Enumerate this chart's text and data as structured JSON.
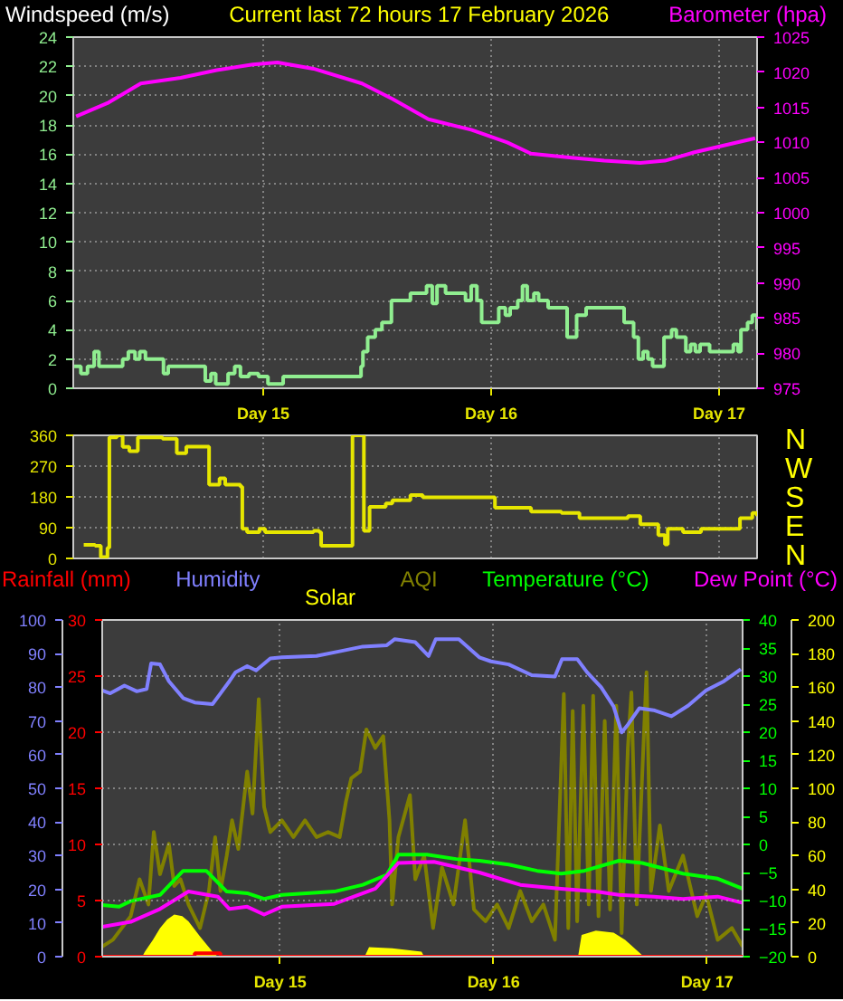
{
  "chart_data": [
    {
      "type": "line",
      "title": "Current last 72 hours 17 February 2026",
      "ylabel": "Windspeed (m/s)",
      "y2label": "Barometer (hpa)",
      "xlim": [
        "2026-02-14T04:00",
        "2026-02-17T04:00"
      ],
      "xticks": [
        {
          "value": "2026-02-15",
          "label": "Day 15"
        },
        {
          "value": "2026-02-16",
          "label": "Day 16"
        },
        {
          "value": "2026-02-17",
          "label": "Day 17"
        }
      ],
      "ylim": [
        0,
        24
      ],
      "yticks": [
        0,
        2,
        4,
        6,
        8,
        10,
        12,
        14,
        16,
        18,
        20,
        22,
        24
      ],
      "y2lim": [
        975,
        1025
      ],
      "y2ticks": [
        975,
        980,
        985,
        990,
        995,
        1000,
        1005,
        1010,
        1015,
        1020,
        1025
      ],
      "grid": true,
      "series": [
        {
          "type": "step",
          "color": "#90ee90",
          "x": [
            "2026-02-14T04:06",
            "2026-02-14T04:48",
            "2026-02-14T05:30",
            "2026-02-14T06:12",
            "2026-02-14T06:42",
            "2026-02-14T08:42",
            "2026-02-14T09:12",
            "2026-02-14T09:48",
            "2026-02-14T10:30",
            "2026-02-14T11:00",
            "2026-02-14T11:36",
            "2026-02-14T13:00",
            "2026-02-14T13:30",
            "2026-02-14T14:00",
            "2026-02-14T17:00",
            "2026-02-14T17:54",
            "2026-02-14T18:30",
            "2026-02-14T19:00",
            "2026-02-14T19:42",
            "2026-02-14T20:18",
            "2026-02-14T21:00",
            "2026-02-14T21:36",
            "2026-02-14T22:30",
            "2026-02-14T23:30",
            "2026-02-15T00:30",
            "2026-02-15T02:06",
            "2026-02-15T08:12",
            "2026-02-15T10:18",
            "2026-02-15T10:30",
            "2026-02-15T11:00",
            "2026-02-15T11:48",
            "2026-02-15T12:30",
            "2026-02-15T13:30",
            "2026-02-15T15:30",
            "2026-02-15T17:12",
            "2026-02-15T17:48",
            "2026-02-15T18:18",
            "2026-02-15T19:12",
            "2026-02-15T21:18",
            "2026-02-15T21:54",
            "2026-02-15T22:30",
            "2026-02-15T23:00",
            "2026-02-16T00:30",
            "2026-02-16T00:48",
            "2026-02-16T01:30",
            "2026-02-16T02:00",
            "2026-02-16T02:48",
            "2026-02-16T03:18",
            "2026-02-16T03:48",
            "2026-02-16T04:30",
            "2026-02-16T05:00",
            "2026-02-16T06:00",
            "2026-02-16T08:00",
            "2026-02-16T09:00",
            "2026-02-16T10:00",
            "2026-02-16T13:30",
            "2026-02-16T14:00",
            "2026-02-16T15:00",
            "2026-02-16T15:30",
            "2026-02-16T16:00",
            "2026-02-16T16:30",
            "2026-02-16T17:00",
            "2026-02-16T18:12",
            "2026-02-16T19:00",
            "2026-02-16T19:30",
            "2026-02-16T20:30",
            "2026-02-16T21:00",
            "2026-02-16T21:30",
            "2026-02-16T22:00",
            "2026-02-16T23:00",
            "2026-02-17T01:30",
            "2026-02-17T02:00",
            "2026-02-17T02:18",
            "2026-02-17T03:00",
            "2026-02-17T03:30",
            "2026-02-17T04:00"
          ],
          "values": [
            1.5,
            1.0,
            1.5,
            2.5,
            1.5,
            1.5,
            2.0,
            2.5,
            2.0,
            2.5,
            2.0,
            2.0,
            1.0,
            1.5,
            1.5,
            0.5,
            1.0,
            0.3,
            0.3,
            1.0,
            1.5,
            0.8,
            1.0,
            0.8,
            0.3,
            0.8,
            0.8,
            1.5,
            2.5,
            3.5,
            4.0,
            4.5,
            6.0,
            6.5,
            7.0,
            5.8,
            7.0,
            6.5,
            6.0,
            7.0,
            6.0,
            4.5,
            4.5,
            5.5,
            5.0,
            5.5,
            6.0,
            7.0,
            6.0,
            6.5,
            6.0,
            5.5,
            3.5,
            5.0,
            5.5,
            5.5,
            4.5,
            3.5,
            2.0,
            2.5,
            2.0,
            1.5,
            3.5,
            4.0,
            3.5,
            2.5,
            3.0,
            2.5,
            3.0,
            2.5,
            3.0,
            2.5,
            4.0,
            4.5,
            5.0,
            4.0
          ]
        },
        {
          "color": "#ff00ff",
          "axis": "y2",
          "x": [
            "2026-02-14T04:18",
            "2026-02-14T07:36",
            "2026-02-14T11:06",
            "2026-02-14T15:18",
            "2026-02-14T19:06",
            "2026-02-14T22:54",
            "2026-02-15T01:30",
            "2026-02-15T05:18",
            "2026-02-15T10:24",
            "2026-02-15T13:36",
            "2026-02-15T17:24",
            "2026-02-15T21:54",
            "2026-02-16T01:42",
            "2026-02-16T04:12",
            "2026-02-16T08:42",
            "2026-02-16T11:54",
            "2026-02-16T15:42",
            "2026-02-16T18:18",
            "2026-02-16T21:24",
            "2026-02-17T00:36",
            "2026-02-17T03:48"
          ],
          "values": [
            1013.7,
            1015.6,
            1018.4,
            1019.2,
            1020.3,
            1021.1,
            1021.4,
            1020.5,
            1018.4,
            1016.2,
            1013.3,
            1011.8,
            1010.0,
            1008.4,
            1007.8,
            1007.4,
            1007.1,
            1007.4,
            1008.6,
            1009.6,
            1010.6
          ]
        }
      ]
    },
    {
      "type": "step",
      "annotations": [
        "N",
        "W",
        "S",
        "E",
        "N"
      ],
      "xlim": [
        "2026-02-14T04:00",
        "2026-02-17T04:00"
      ],
      "xticks": [
        {
          "value": "2026-02-15",
          "label": null
        },
        {
          "value": "2026-02-16",
          "label": null
        },
        {
          "value": "2026-02-17",
          "label": null
        }
      ],
      "ylim": [
        0,
        360
      ],
      "yticks": [
        0,
        90,
        180,
        270,
        360
      ],
      "tick_labels": "y",
      "grid": true,
      "series": [
        {
          "color": "#e6e600",
          "x": [
            "2026-02-14T05:06",
            "2026-02-14T06:18",
            "2026-02-14T06:54",
            "2026-02-14T07:30",
            "2026-02-14T07:36",
            "2026-02-14T07:48",
            "2026-02-14T08:36",
            "2026-02-14T09:12",
            "2026-02-14T09:54",
            "2026-02-14T10:48",
            "2026-02-14T13:24",
            "2026-02-14T14:54",
            "2026-02-14T15:54",
            "2026-02-14T18:06",
            "2026-02-14T18:18",
            "2026-02-14T19:24",
            "2026-02-14T20:00",
            "2026-02-14T21:36",
            "2026-02-14T21:48",
            "2026-02-14T22:18",
            "2026-02-14T23:36",
            "2026-02-15T00:12",
            "2026-02-15T05:18",
            "2026-02-15T05:54",
            "2026-02-15T06:06",
            "2026-02-15T09:12",
            "2026-02-15T09:24",
            "2026-02-15T10:24",
            "2026-02-15T10:36",
            "2026-02-15T11:12",
            "2026-02-15T12:54",
            "2026-02-15T13:36",
            "2026-02-15T15:30",
            "2026-02-15T16:48",
            "2026-02-15T23:06",
            "2026-02-16T00:24",
            "2026-02-16T01:42",
            "2026-02-16T04:12",
            "2026-02-16T07:24",
            "2026-02-16T09:18",
            "2026-02-16T14:24",
            "2026-02-16T15:42",
            "2026-02-16T17:36",
            "2026-02-16T18:18",
            "2026-02-16T18:36",
            "2026-02-16T20:12",
            "2026-02-16T22:06",
            "2026-02-17T01:18",
            "2026-02-17T02:12",
            "2026-02-17T03:30",
            "2026-02-17T04:00"
          ],
          "values": [
            40,
            37,
            4,
            4,
            31,
            354,
            360,
            326,
            314,
            354,
            350,
            308,
            327,
            327,
            216,
            234,
            216,
            210,
            87,
            77,
            87,
            77,
            81,
            77,
            37,
            37,
            360,
            360,
            81,
            151,
            161,
            170,
            185,
            179,
            179,
            148,
            148,
            137,
            133,
            118,
            124,
            100,
            68,
            41,
            87,
            77,
            87,
            87,
            118,
            133,
            124
          ]
        }
      ]
    },
    {
      "type": "line",
      "legend": "top",
      "xlim": [
        "2026-02-14T04:00",
        "2026-02-17T04:00"
      ],
      "xticks": [
        {
          "value": "2026-02-15",
          "label": "Day 15"
        },
        {
          "value": "2026-02-16",
          "label": "Day 16"
        },
        {
          "value": "2026-02-17",
          "label": "Day 17"
        }
      ],
      "ylim": [
        0,
        30
      ],
      "yticks": [
        0,
        5,
        10,
        15,
        20,
        25,
        30
      ],
      "y2lim": [
        0,
        100
      ],
      "y2ticks": [
        0,
        10,
        20,
        30,
        40,
        50,
        60,
        70,
        80,
        90,
        100
      ],
      "grid": true,
      "series": [
        {
          "name": "Rainfall (mm)",
          "type": "step",
          "color": "#ff0000",
          "x": [
            "2026-02-14T04:00",
            "2026-02-14T14:24",
            "2026-02-14T17:18",
            "2026-02-17T04:00"
          ],
          "values": [
            0,
            0.3,
            0,
            0
          ]
        },
        {
          "name": "Humidity",
          "color": "#8080ff",
          "axis": "y2",
          "x": [
            "2026-02-14T04:00",
            "2026-02-14T04:54",
            "2026-02-14T06:30",
            "2026-02-14T07:54",
            "2026-02-14T09:00",
            "2026-02-14T09:30",
            "2026-02-14T10:30",
            "2026-02-14T11:30",
            "2026-02-14T13:06",
            "2026-02-14T14:24",
            "2026-02-14T16:24",
            "2026-02-14T17:18",
            "2026-02-14T18:18",
            "2026-02-14T19:00",
            "2026-02-14T20:18",
            "2026-02-14T21:18",
            "2026-02-14T22:54",
            "2026-02-15T00:12",
            "2026-02-15T04:06",
            "2026-02-15T06:42",
            "2026-02-15T09:18",
            "2026-02-15T12:00",
            "2026-02-15T12:54",
            "2026-02-15T15:12",
            "2026-02-15T16:42",
            "2026-02-15T17:30",
            "2026-02-15T20:06",
            "2026-02-15T22:24",
            "2026-02-15T23:42",
            "2026-02-16T01:42",
            "2026-02-16T04:18",
            "2026-02-16T06:54",
            "2026-02-16T07:42",
            "2026-02-16T09:24",
            "2026-02-16T10:30",
            "2026-02-16T12:06",
            "2026-02-16T13:30",
            "2026-02-16T14:24",
            "2026-02-16T15:06",
            "2026-02-16T16:24",
            "2026-02-16T18:00",
            "2026-02-16T20:00",
            "2026-02-16T21:54",
            "2026-02-16T23:54",
            "2026-02-17T01:54",
            "2026-02-17T03:48"
          ],
          "values": [
            79.1,
            78.2,
            80.5,
            78.8,
            79.5,
            87.1,
            86.8,
            81.8,
            76.8,
            75.5,
            75.0,
            78.2,
            81.8,
            84.5,
            86.3,
            85.0,
            88.6,
            88.9,
            89.3,
            90.7,
            92.1,
            92.5,
            94.3,
            93.4,
            89.3,
            94.3,
            94.3,
            88.9,
            87.7,
            86.8,
            83.6,
            83.2,
            88.4,
            88.4,
            84.5,
            80.0,
            74.3,
            66.6,
            68.9,
            73.8,
            73.2,
            71.4,
            74.6,
            79.1,
            81.8,
            85.4
          ]
        }
      ]
    },
    {
      "type": "line",
      "legend": "top",
      "xlim": [
        "2026-02-14T04:00",
        "2026-02-17T04:00"
      ],
      "xticks": [
        {
          "value": "2026-02-15",
          "label": null
        },
        {
          "value": "2026-02-16",
          "label": null
        },
        {
          "value": "2026-02-17",
          "label": null
        }
      ],
      "tick_labels": "y",
      "ylim": [
        -20,
        40
      ],
      "yticks": [
        -20,
        -15,
        -10,
        -5,
        0,
        5,
        10,
        15,
        20,
        25,
        30,
        35,
        40
      ],
      "y2lim": [
        0,
        200
      ],
      "y2ticks": [
        0,
        20,
        40,
        60,
        80,
        100,
        120,
        140,
        160,
        180,
        200
      ],
      "series": [
        {
          "name": "Solar",
          "type": "area",
          "color": "#ffff00",
          "axis": "y2",
          "x": [
            "2026-02-14T04:00",
            "2026-02-14T08:30",
            "2026-02-14T08:48",
            "2026-02-14T09:42",
            "2026-02-14T10:30",
            "2026-02-14T11:18",
            "2026-02-14T12:06",
            "2026-02-14T13:00",
            "2026-02-14T13:42",
            "2026-02-14T15:00",
            "2026-02-14T16:24",
            "2026-02-14T17:00",
            "2026-02-15T09:30",
            "2026-02-15T10:00",
            "2026-02-15T12:36",
            "2026-02-15T15:54",
            "2026-02-15T16:12",
            "2026-02-16T09:30",
            "2026-02-16T09:54",
            "2026-02-16T11:30",
            "2026-02-16T13:30",
            "2026-02-16T14:48",
            "2026-02-16T16:42",
            "2026-02-16T17:00",
            "2026-02-17T04:00"
          ],
          "values": [
            0,
            0,
            3,
            10,
            17,
            22,
            25,
            24,
            21,
            12,
            3,
            0,
            0,
            5.7,
            5,
            3,
            0,
            0,
            12.9,
            15.4,
            14.3,
            10,
            1,
            0,
            0
          ]
        },
        {
          "name": "AQI",
          "color": "#808000",
          "axis": "y2",
          "x": [
            "2026-02-14T04:00",
            "2026-02-14T05:12",
            "2026-02-14T07:12",
            "2026-02-14T08:12",
            "2026-02-14T09:12",
            "2026-02-14T09:48",
            "2026-02-14T10:30",
            "2026-02-14T11:30",
            "2026-02-14T12:06",
            "2026-02-14T12:48",
            "2026-02-14T13:42",
            "2026-02-14T15:00",
            "2026-02-14T16:00",
            "2026-02-14T16:42",
            "2026-02-14T17:18",
            "2026-02-14T18:00",
            "2026-02-14T18:36",
            "2026-02-14T19:18",
            "2026-02-14T20:18",
            "2026-02-14T20:54",
            "2026-02-14T21:36",
            "2026-02-14T22:12",
            "2026-02-14T22:54",
            "2026-02-15T00:12",
            "2026-02-15T01:30",
            "2026-02-15T02:48",
            "2026-02-15T04:06",
            "2026-02-15T05:24",
            "2026-02-15T06:42",
            "2026-02-15T07:24",
            "2026-02-15T08:00",
            "2026-02-15T09:00",
            "2026-02-15T09:42",
            "2026-02-15T10:42",
            "2026-02-15T11:36",
            "2026-02-15T12:18",
            "2026-02-15T12:36",
            "2026-02-15T13:18",
            "2026-02-15T14:36",
            "2026-02-15T15:12",
            "2026-02-15T16:12",
            "2026-02-15T17:12",
            "2026-02-15T18:12",
            "2026-02-15T19:30",
            "2026-02-15T20:48",
            "2026-02-15T21:48",
            "2026-02-15T23:06",
            "2026-02-16T00:24",
            "2026-02-16T01:42",
            "2026-02-16T03:00",
            "2026-02-16T04:18",
            "2026-02-16T05:36",
            "2026-02-16T06:54",
            "2026-02-16T07:54",
            "2026-02-16T08:24",
            "2026-02-16T08:54",
            "2026-02-16T09:24",
            "2026-02-16T10:06",
            "2026-02-16T10:42",
            "2026-02-16T11:12",
            "2026-02-16T11:48",
            "2026-02-16T12:30",
            "2026-02-16T13:06",
            "2026-02-16T13:48",
            "2026-02-16T14:24",
            "2026-02-16T15:06",
            "2026-02-16T15:30",
            "2026-02-16T16:06",
            "2026-02-16T17:12",
            "2026-02-16T17:42",
            "2026-02-16T18:42",
            "2026-02-16T19:42",
            "2026-02-16T21:18",
            "2026-02-16T22:54",
            "2026-02-16T23:54",
            "2026-02-17T01:12",
            "2026-02-17T02:48",
            "2026-02-17T04:00"
          ],
          "values": [
            6,
            10,
            24,
            46,
            31,
            74,
            49,
            67,
            42,
            46,
            31,
            17,
            39,
            71,
            39,
            60,
            81,
            64,
            110,
            85,
            153,
            89,
            74,
            81,
            71,
            81,
            71,
            74,
            71,
            92,
            106,
            110,
            135,
            124,
            131,
            81,
            31,
            71,
            96,
            46,
            60,
            17,
            53,
            31,
            81,
            28,
            21,
            31,
            17,
            39,
            21,
            31,
            10,
            156,
            17,
            146,
            21,
            149,
            31,
            155,
            24,
            140,
            28,
            149,
            14,
            124,
            157,
            31,
            169,
            39,
            78,
            39,
            60,
            24,
            37,
            10,
            17,
            6
          ]
        },
        {
          "name": "Temperature (°C)",
          "color": "#00ff00",
          "x": [
            "2026-02-14T04:00",
            "2026-02-14T05:54",
            "2026-02-14T07:12",
            "2026-02-14T10:30",
            "2026-02-14T13:06",
            "2026-02-14T15:42",
            "2026-02-14T18:00",
            "2026-02-14T20:18",
            "2026-02-14T22:12",
            "2026-02-15T00:12",
            "2026-02-15T06:06",
            "2026-02-15T09:18",
            "2026-02-15T12:00",
            "2026-02-15T13:18",
            "2026-02-15T16:30",
            "2026-02-15T19:48",
            "2026-02-15T22:24",
            "2026-02-16T01:42",
            "2026-02-16T04:54",
            "2026-02-16T07:36",
            "2026-02-16T10:12",
            "2026-02-16T14:06",
            "2026-02-16T16:42",
            "2026-02-16T21:18",
            "2026-02-17T01:12",
            "2026-02-17T04:00"
          ],
          "values": [
            -10.8,
            -11.1,
            -10.1,
            -9.0,
            -4.7,
            -4.7,
            -8.4,
            -8.7,
            -9.7,
            -9.0,
            -8.4,
            -7.2,
            -5.4,
            -1.8,
            -1.8,
            -2.6,
            -2.9,
            -3.6,
            -4.7,
            -5.2,
            -4.7,
            -2.9,
            -3.3,
            -5.2,
            -6.1,
            -7.9
          ]
        },
        {
          "name": "Dew Point (°C)",
          "color": "#ff00ff",
          "x": [
            "2026-02-14T04:00",
            "2026-02-14T07:12",
            "2026-02-14T10:30",
            "2026-02-14T13:42",
            "2026-02-14T17:00",
            "2026-02-14T18:18",
            "2026-02-14T20:18",
            "2026-02-14T22:12",
            "2026-02-15T00:12",
            "2026-02-15T06:06",
            "2026-02-15T10:42",
            "2026-02-15T13:18",
            "2026-02-15T17:18",
            "2026-02-15T22:24",
            "2026-02-16T03:00",
            "2026-02-16T07:36",
            "2026-02-16T11:30",
            "2026-02-16T14:06",
            "2026-02-16T18:00",
            "2026-02-16T21:18",
            "2026-02-17T01:12",
            "2026-02-17T04:00"
          ],
          "values": [
            -14.7,
            -13.8,
            -11.5,
            -8.4,
            -9.3,
            -11.5,
            -11.1,
            -12.5,
            -11.1,
            -10.6,
            -7.9,
            -3.3,
            -3.1,
            -5.0,
            -7.2,
            -7.9,
            -8.4,
            -9.0,
            -9.3,
            -9.7,
            -9.3,
            -10.4
          ]
        }
      ]
    }
  ]
}
